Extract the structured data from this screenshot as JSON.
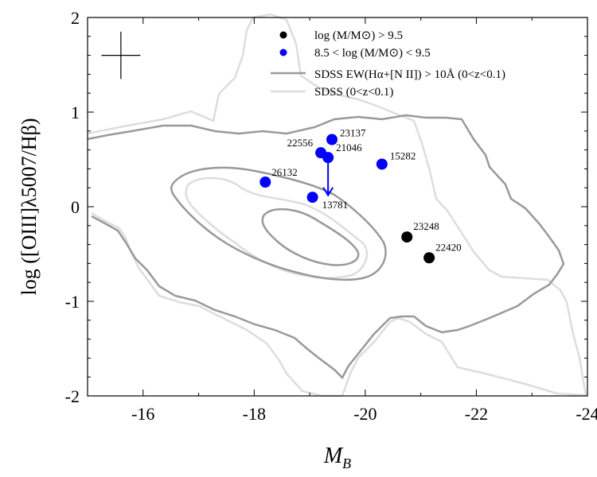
{
  "chart_data": {
    "type": "scatter",
    "xlabel": "M",
    "xlabel_sub": "B",
    "ylabel": "log ([OIII]λ5007/Hβ)",
    "xlim": [
      -15,
      -24
    ],
    "ylim": [
      -2,
      2
    ],
    "xticks": [
      -16,
      -18,
      -20,
      -22,
      -24
    ],
    "yticks": [
      -2,
      -1,
      0,
      1,
      2
    ],
    "xtick_labels": [
      "-16",
      "-18",
      "-20",
      "-22",
      "-24"
    ],
    "ytick_labels": [
      "-2",
      "-1",
      "0",
      "1",
      "2"
    ],
    "series": [
      {
        "name": "log (M/M⊙) > 9.5",
        "color": "#000000",
        "points": [
          {
            "id": "23248",
            "x": -20.75,
            "y": -0.32
          },
          {
            "id": "22420",
            "x": -21.15,
            "y": -0.54
          }
        ]
      },
      {
        "name": "8.5 < log (M/M⊙) < 9.5",
        "color": "#0000ff",
        "points": [
          {
            "id": "23137",
            "x": -19.4,
            "y": 0.71
          },
          {
            "id": "22556",
            "x": -19.2,
            "y": 0.57
          },
          {
            "id": "21046",
            "x": -19.33,
            "y": 0.52
          },
          {
            "id": "15282",
            "x": -20.3,
            "y": 0.45
          },
          {
            "id": "26132",
            "x": -18.2,
            "y": 0.26
          },
          {
            "id": "13781",
            "x": -19.05,
            "y": 0.1
          }
        ]
      }
    ],
    "arrow": {
      "x": -19.33,
      "y_from": 0.48,
      "y_to": 0.12,
      "color": "#0000ff"
    },
    "error_bar": {
      "x": -15.6,
      "y": 1.6,
      "dx": 0.35,
      "dy": 0.25
    },
    "contour_series": [
      {
        "name": "SDSS EW(Hα+[N II]) > 10Å (0<z<0.1)",
        "color": "#999999"
      },
      {
        "name": "SDSS (0<z<0.1)",
        "color": "#dddddd"
      }
    ],
    "legend": {
      "position": "top-right",
      "entries": [
        "log (M/M⊙) > 9.5",
        "8.5 < log (M/M⊙) < 9.5",
        "SDSS EW(Hα+[N II]) > 10Å (0<z<0.1)",
        "SDSS (0<z<0.1)"
      ]
    }
  }
}
